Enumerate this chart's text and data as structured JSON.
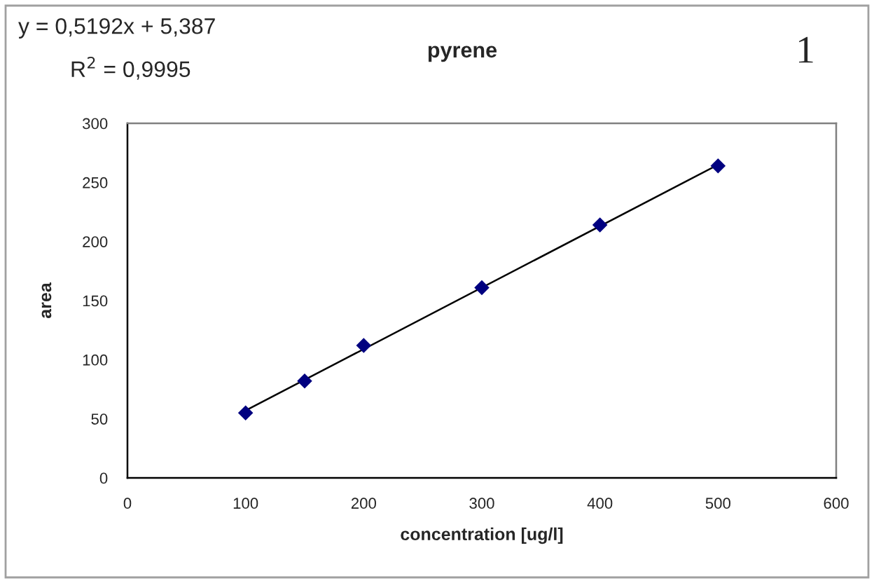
{
  "chart_data": {
    "type": "scatter",
    "title": "pyrene",
    "xlabel": "concentration [ug/l]",
    "ylabel": "area",
    "annotations": [
      "y = 0,5192x + 5,387",
      "R$^{2}$ = 0,9995",
      "1"
    ],
    "x": [
      100,
      150,
      200,
      300,
      400,
      500
    ],
    "series": [
      {
        "color": "#000080",
        "marker": "diamond",
        "values": [
          55,
          82,
          112,
          161,
          214,
          264
        ]
      },
      {
        "type": "line",
        "color": "#000000",
        "marker": "none",
        "x": [
          100,
          500
        ],
        "values": [
          57,
          265
        ]
      }
    ],
    "xlim": [
      0,
      600
    ],
    "xticks": [
      0,
      100,
      200,
      300,
      400,
      500,
      600
    ],
    "ylim": [
      0,
      300
    ],
    "yticks": [
      0,
      50,
      100,
      150,
      200,
      250,
      300
    ],
    "grid": false,
    "legend": false
  }
}
